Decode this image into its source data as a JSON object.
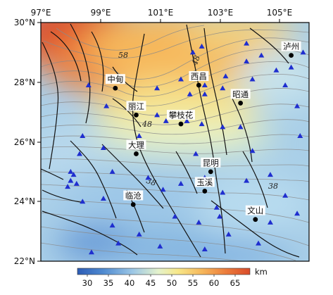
{
  "map": {
    "lon_ticks": [
      "97°E",
      "99°E",
      "101°E",
      "103°E",
      "105°E"
    ],
    "lat_ticks": [
      "30°N",
      "28°N",
      "26°N",
      "24°N",
      "22°N"
    ],
    "extent": {
      "lon": [
        97,
        106
      ],
      "lat": [
        22,
        30
      ]
    }
  },
  "colorbar": {
    "ticks": [
      "30",
      "35",
      "40",
      "45",
      "50",
      "55",
      "60",
      "65"
    ],
    "unit": "km",
    "range": [
      27,
      68
    ],
    "colors": [
      "#2d5cb5",
      "#4f8ad0",
      "#9cc7e6",
      "#e4f2cc",
      "#f7e88a",
      "#f6b85c",
      "#ec7d3c",
      "#d94b2a"
    ]
  },
  "contour_labels": [
    "58",
    "48",
    "48",
    "38",
    "38"
  ],
  "cities": [
    {
      "name": "中甸",
      "lon": 99.5,
      "lat": 27.8
    },
    {
      "name": "西昌",
      "lon": 102.3,
      "lat": 27.9
    },
    {
      "name": "泸州",
      "lon": 105.4,
      "lat": 28.9
    },
    {
      "name": "昭通",
      "lon": 103.7,
      "lat": 27.3
    },
    {
      "name": "丽江",
      "lon": 100.2,
      "lat": 26.9
    },
    {
      "name": "攀枝花",
      "lon": 101.7,
      "lat": 26.6
    },
    {
      "name": "大理",
      "lon": 100.2,
      "lat": 25.6
    },
    {
      "name": "昆明",
      "lon": 102.7,
      "lat": 25.0
    },
    {
      "name": "玉溪",
      "lon": 102.5,
      "lat": 24.35
    },
    {
      "name": "临沧",
      "lon": 100.1,
      "lat": 23.9
    },
    {
      "name": "文山",
      "lon": 104.2,
      "lat": 23.4
    }
  ],
  "stations": [
    [
      102.4,
      29.2
    ],
    [
      103.9,
      29.3
    ],
    [
      102.1,
      29.0
    ],
    [
      104.4,
      28.9
    ],
    [
      104.9,
      28.4
    ],
    [
      105.4,
      28.5
    ],
    [
      105.8,
      29.0
    ],
    [
      103.9,
      28.7
    ],
    [
      98.6,
      27.9
    ],
    [
      100.9,
      27.8
    ],
    [
      101.7,
      28.1
    ],
    [
      102.5,
      27.9
    ],
    [
      103.2,
      28.2
    ],
    [
      104.1,
      28.1
    ],
    [
      105.2,
      27.9
    ],
    [
      102.5,
      27.6
    ],
    [
      103.1,
      27.8
    ],
    [
      102.0,
      27.6
    ],
    [
      99.2,
      27.2
    ],
    [
      100.9,
      26.9
    ],
    [
      101.2,
      26.7
    ],
    [
      101.9,
      26.7
    ],
    [
      102.4,
      26.6
    ],
    [
      103.1,
      26.5
    ],
    [
      103.7,
      26.5
    ],
    [
      105.7,
      26.2
    ],
    [
      105.6,
      27.2
    ],
    [
      98.4,
      26.2
    ],
    [
      100.3,
      26.2
    ],
    [
      98.3,
      25.6
    ],
    [
      99.1,
      25.8
    ],
    [
      100.4,
      25.9
    ],
    [
      102.2,
      25.6
    ],
    [
      104.1,
      25.7
    ],
    [
      98.0,
      25.0
    ],
    [
      98.1,
      24.9
    ],
    [
      98.0,
      24.7
    ],
    [
      98.2,
      24.6
    ],
    [
      97.9,
      24.5
    ],
    [
      99.4,
      25.0
    ],
    [
      100.6,
      24.8
    ],
    [
      101.7,
      24.6
    ],
    [
      102.5,
      24.8
    ],
    [
      103.1,
      24.3
    ],
    [
      103.9,
      24.7
    ],
    [
      104.7,
      24.9
    ],
    [
      105.2,
      24.2
    ],
    [
      98.4,
      24.0
    ],
    [
      99.1,
      24.1
    ],
    [
      101.1,
      24.4
    ],
    [
      102.9,
      23.8
    ],
    [
      101.5,
      23.5
    ],
    [
      102.3,
      23.3
    ],
    [
      103.0,
      23.5
    ],
    [
      99.4,
      23.2
    ],
    [
      104.7,
      23.3
    ],
    [
      105.6,
      23.6
    ],
    [
      100.3,
      22.9
    ],
    [
      101.0,
      22.5
    ],
    [
      102.5,
      22.4
    ],
    [
      103.3,
      22.9
    ],
    [
      104.3,
      22.6
    ],
    [
      99.6,
      22.6
    ],
    [
      98.7,
      22.3
    ],
    [
      102.9,
      25.3
    ]
  ]
}
